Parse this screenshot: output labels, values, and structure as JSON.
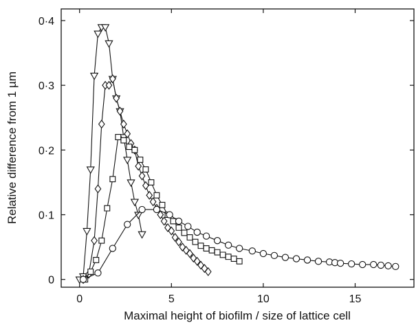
{
  "chart_data": {
    "type": "scatter",
    "title": "",
    "xlabel": "Maximal height of biofilm / size of lattice cell",
    "ylabel": "Relative difference from 1 µm",
    "xlim": [
      -1.0,
      18.2
    ],
    "ylim": [
      -0.012,
      0.418
    ],
    "xticks": [
      0,
      5,
      10,
      15
    ],
    "xtick_labels": [
      "0",
      "5",
      "10",
      "15"
    ],
    "yticks": [
      0,
      0.1,
      0.2,
      0.3,
      0.4
    ],
    "ytick_labels": [
      "0",
      "0·1",
      "0·2",
      "0·3",
      "0·4"
    ],
    "grid": false,
    "legend": "none",
    "series": [
      {
        "marker": "triangle-down",
        "x": [
          0.0,
          0.2,
          0.4,
          0.6,
          0.8,
          1.0,
          1.2,
          1.4,
          1.6,
          1.8,
          2.0,
          2.2,
          2.4,
          2.6,
          2.8,
          3.0,
          3.2,
          3.4
        ],
        "y": [
          0.0,
          0.005,
          0.075,
          0.17,
          0.315,
          0.38,
          0.39,
          0.39,
          0.365,
          0.31,
          0.28,
          0.26,
          0.22,
          0.185,
          0.15,
          0.12,
          0.1,
          0.07
        ]
      },
      {
        "marker": "diamond",
        "x": [
          0.2,
          0.5,
          0.8,
          1.0,
          1.2,
          1.4,
          1.6,
          1.8,
          2.0,
          2.2,
          2.4,
          2.6,
          2.8,
          3.0,
          3.2,
          3.4,
          3.6,
          3.8,
          4.0,
          4.2,
          4.4,
          4.6,
          4.8,
          5.0,
          5.2,
          5.4,
          5.6,
          5.8,
          6.0,
          6.2,
          6.4,
          6.6,
          6.8,
          7.0
        ],
        "y": [
          0.0,
          0.008,
          0.06,
          0.14,
          0.24,
          0.3,
          0.3,
          0.31,
          0.28,
          0.26,
          0.24,
          0.225,
          0.21,
          0.2,
          0.175,
          0.16,
          0.145,
          0.13,
          0.12,
          0.11,
          0.1,
          0.09,
          0.08,
          0.075,
          0.065,
          0.058,
          0.05,
          0.045,
          0.04,
          0.033,
          0.028,
          0.022,
          0.017,
          0.012
        ]
      },
      {
        "marker": "square",
        "x": [
          0.3,
          0.6,
          0.9,
          1.2,
          1.5,
          1.8,
          2.1,
          2.4,
          2.7,
          3.0,
          3.3,
          3.6,
          3.9,
          4.2,
          4.5,
          4.8,
          5.1,
          5.4,
          5.7,
          6.0,
          6.3,
          6.6,
          6.9,
          7.2,
          7.5,
          7.8,
          8.1,
          8.4,
          8.7
        ],
        "y": [
          0.0,
          0.012,
          0.03,
          0.06,
          0.11,
          0.155,
          0.22,
          0.215,
          0.205,
          0.2,
          0.185,
          0.17,
          0.15,
          0.13,
          0.115,
          0.1,
          0.09,
          0.08,
          0.072,
          0.065,
          0.058,
          0.052,
          0.048,
          0.045,
          0.042,
          0.038,
          0.035,
          0.032,
          0.028
        ]
      },
      {
        "marker": "circle",
        "x": [
          0.2,
          1.0,
          1.8,
          2.6,
          3.4,
          4.2,
          4.9,
          5.4,
          5.9,
          6.4,
          6.9,
          7.5,
          8.1,
          8.7,
          9.4,
          10.0,
          10.6,
          11.2,
          11.8,
          12.4,
          13.0,
          13.6,
          13.9,
          14.2,
          14.8,
          15.4,
          16.0,
          16.4,
          16.8,
          17.2
        ],
        "y": [
          0.0,
          0.01,
          0.048,
          0.085,
          0.108,
          0.108,
          0.1,
          0.09,
          0.082,
          0.073,
          0.067,
          0.06,
          0.053,
          0.048,
          0.044,
          0.04,
          0.037,
          0.034,
          0.032,
          0.03,
          0.028,
          0.027,
          0.026,
          0.025,
          0.024,
          0.023,
          0.023,
          0.022,
          0.021,
          0.02
        ]
      }
    ]
  }
}
